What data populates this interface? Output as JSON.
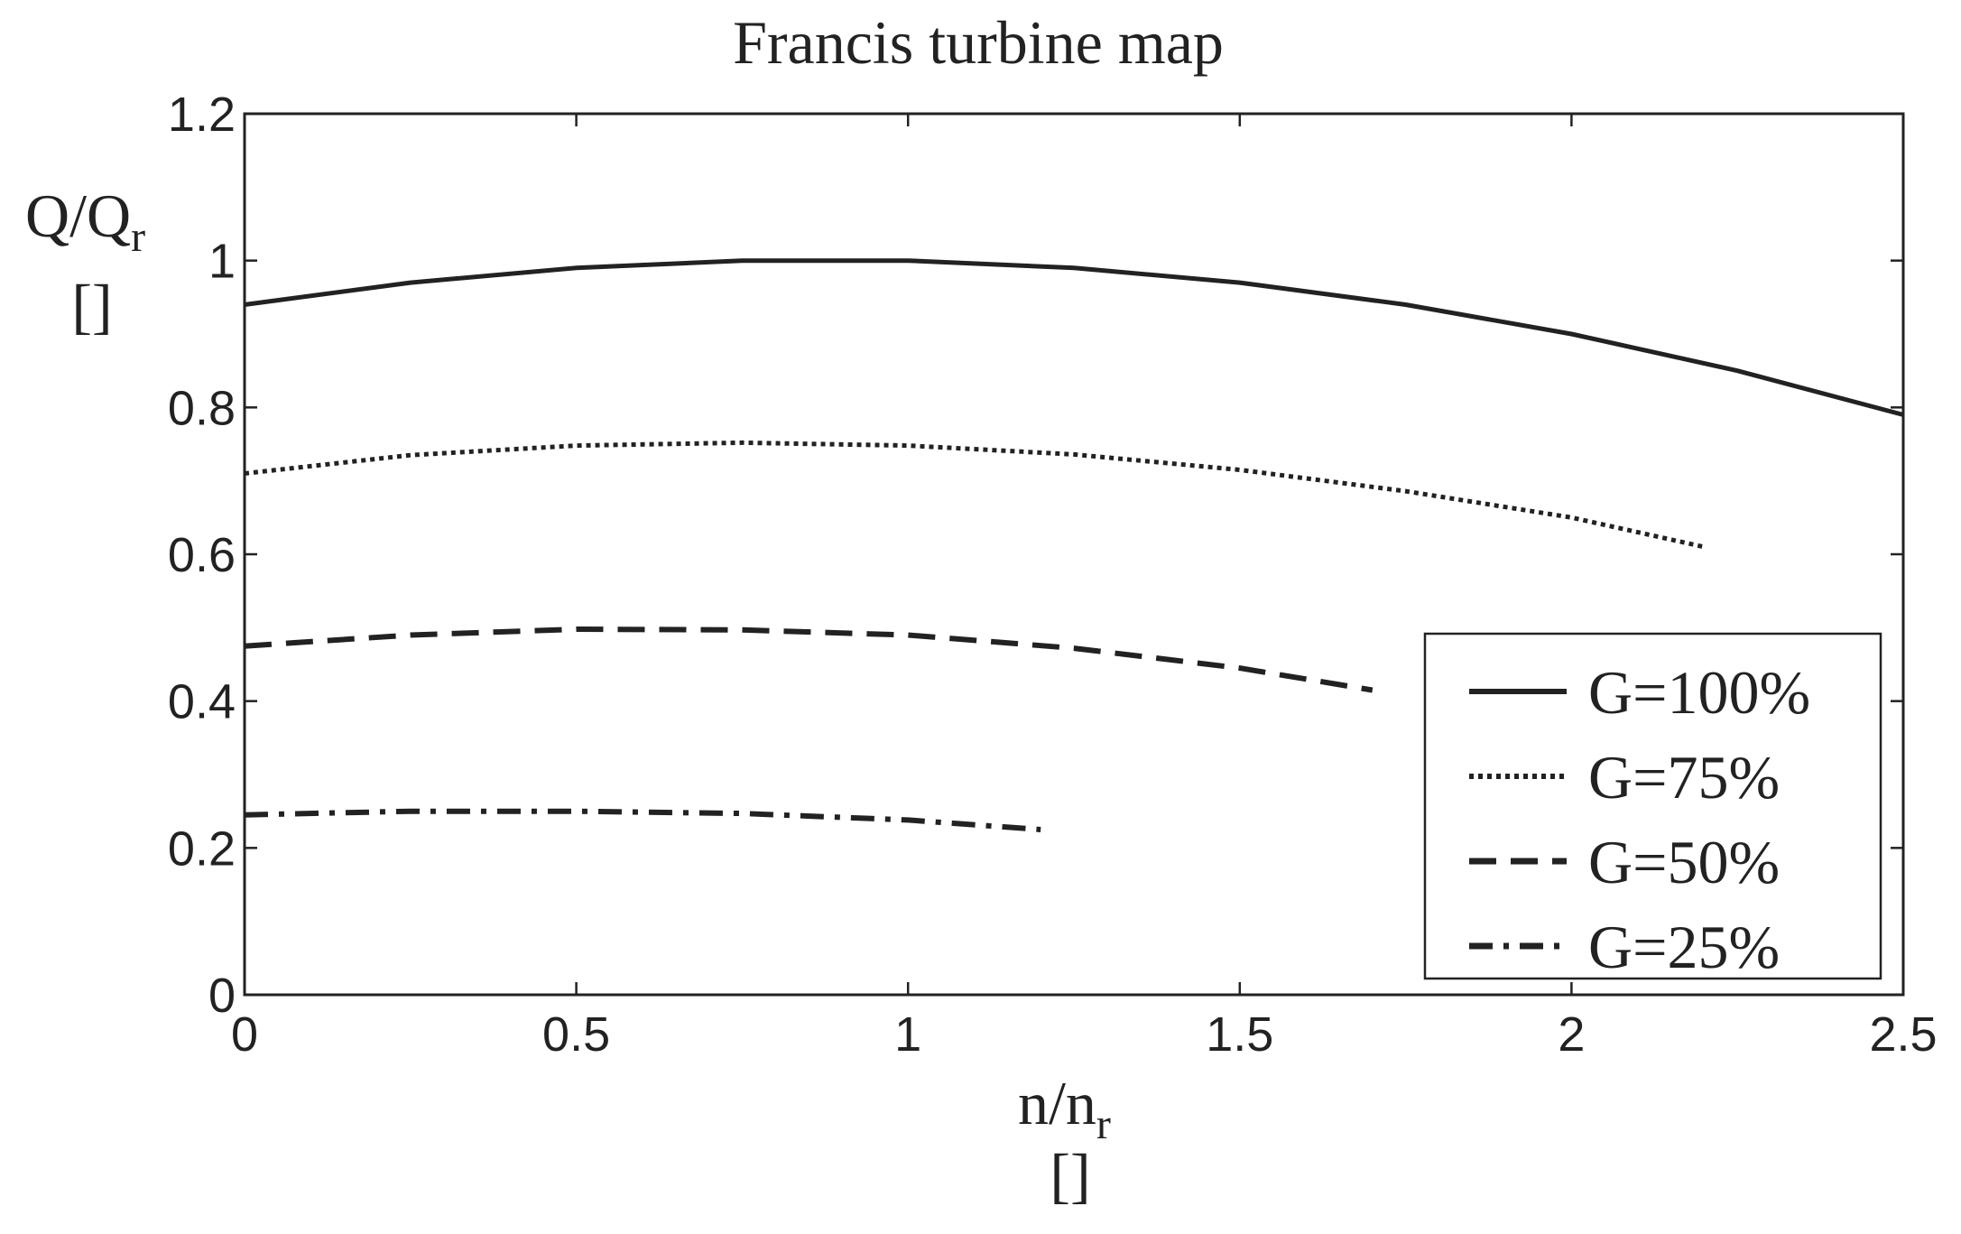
{
  "chart_data": {
    "type": "line",
    "title": "Francis turbine map",
    "xlabel": {
      "main": "n/n",
      "sub": "r",
      "unit": "[]"
    },
    "ylabel": {
      "main": "Q/Q",
      "sub": "r",
      "unit": "[]"
    },
    "xlim": [
      0,
      2.5
    ],
    "ylim": [
      0,
      1.2
    ],
    "xticks": [
      "0",
      "0.5",
      "1",
      "1.5",
      "2",
      "2.5"
    ],
    "yticks": [
      "0",
      "0.2",
      "0.4",
      "0.6",
      "0.8",
      "1",
      "1.2"
    ],
    "grid": false,
    "legend_position": "lower-right",
    "line_color": "#222222",
    "series": [
      {
        "name": "G=100%",
        "style": "solid",
        "x": [
          0,
          0.25,
          0.5,
          0.75,
          1.0,
          1.25,
          1.5,
          1.75,
          2.0,
          2.25,
          2.5
        ],
        "y": [
          0.94,
          0.97,
          0.99,
          1.0,
          1.0,
          0.99,
          0.97,
          0.94,
          0.9,
          0.85,
          0.79
        ]
      },
      {
        "name": "G=75%",
        "style": "dotted",
        "x": [
          0,
          0.25,
          0.5,
          0.75,
          1.0,
          1.25,
          1.5,
          1.75,
          2.0,
          2.2
        ],
        "y": [
          0.71,
          0.735,
          0.748,
          0.752,
          0.748,
          0.736,
          0.715,
          0.686,
          0.65,
          0.61
        ]
      },
      {
        "name": "G=50%",
        "style": "dashed",
        "x": [
          0,
          0.25,
          0.5,
          0.75,
          1.0,
          1.25,
          1.5,
          1.7
        ],
        "y": [
          0.475,
          0.49,
          0.498,
          0.497,
          0.49,
          0.472,
          0.445,
          0.415
        ]
      },
      {
        "name": "G=25%",
        "style": "dashdot",
        "x": [
          0,
          0.25,
          0.5,
          0.75,
          1.0,
          1.2
        ],
        "y": [
          0.245,
          0.25,
          0.25,
          0.247,
          0.238,
          0.225
        ]
      }
    ]
  }
}
